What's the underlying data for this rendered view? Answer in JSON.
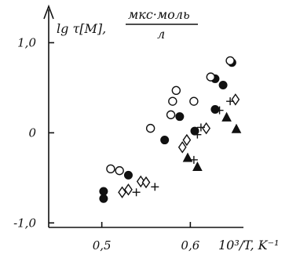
{
  "chart_data": {
    "type": "scatter",
    "xlabel": "10³/T, K⁻¹",
    "ylabel_main": "lg τ[M],",
    "ylabel_unit_num": "мкс·моль",
    "ylabel_unit_den": "л",
    "x_ticks": [
      {
        "value": 0.5,
        "label": "0,5"
      },
      {
        "value": 0.6,
        "label": "0,6"
      }
    ],
    "y_ticks": [
      {
        "value": 1.0,
        "label": "1,0"
      },
      {
        "value": 0.0,
        "label": "0"
      },
      {
        "value": -1.0,
        "label": "-1,0"
      }
    ],
    "xlim": [
      0.44,
      0.66
    ],
    "ylim": [
      -1.05,
      1.3
    ],
    "grid": false,
    "series": [
      {
        "marker": "filled-circle",
        "points": [
          {
            "x": 0.502,
            "y": -0.65
          },
          {
            "x": 0.502,
            "y": -0.73
          },
          {
            "x": 0.53,
            "y": -0.47
          },
          {
            "x": 0.571,
            "y": -0.08
          },
          {
            "x": 0.588,
            "y": 0.18
          },
          {
            "x": 0.605,
            "y": 0.02
          },
          {
            "x": 0.628,
            "y": 0.26
          },
          {
            "x": 0.628,
            "y": 0.6
          },
          {
            "x": 0.637,
            "y": 0.53
          },
          {
            "x": 0.647,
            "y": 0.78
          }
        ]
      },
      {
        "marker": "open-circle",
        "points": [
          {
            "x": 0.51,
            "y": -0.4
          },
          {
            "x": 0.52,
            "y": -0.42
          },
          {
            "x": 0.555,
            "y": 0.05
          },
          {
            "x": 0.578,
            "y": 0.2
          },
          {
            "x": 0.58,
            "y": 0.35
          },
          {
            "x": 0.584,
            "y": 0.47
          },
          {
            "x": 0.604,
            "y": 0.35
          },
          {
            "x": 0.623,
            "y": 0.62
          },
          {
            "x": 0.645,
            "y": 0.8
          }
        ]
      },
      {
        "marker": "open-diamond",
        "points": [
          {
            "x": 0.523,
            "y": -0.66
          },
          {
            "x": 0.53,
            "y": -0.63
          },
          {
            "x": 0.544,
            "y": -0.54
          },
          {
            "x": 0.55,
            "y": -0.55
          },
          {
            "x": 0.591,
            "y": -0.16
          },
          {
            "x": 0.596,
            "y": -0.08
          },
          {
            "x": 0.618,
            "y": 0.05
          },
          {
            "x": 0.651,
            "y": 0.37
          }
        ]
      },
      {
        "marker": "filled-triangle",
        "points": [
          {
            "x": 0.597,
            "y": -0.28
          },
          {
            "x": 0.608,
            "y": -0.38
          },
          {
            "x": 0.641,
            "y": 0.17
          },
          {
            "x": 0.652,
            "y": 0.04
          }
        ]
      },
      {
        "marker": "plus",
        "points": [
          {
            "x": 0.539,
            "y": -0.66
          },
          {
            "x": 0.56,
            "y": -0.6
          },
          {
            "x": 0.604,
            "y": -0.3
          },
          {
            "x": 0.608,
            "y": -0.02
          },
          {
            "x": 0.612,
            "y": 0.06
          },
          {
            "x": 0.633,
            "y": 0.25
          },
          {
            "x": 0.645,
            "y": 0.35
          }
        ]
      }
    ]
  }
}
